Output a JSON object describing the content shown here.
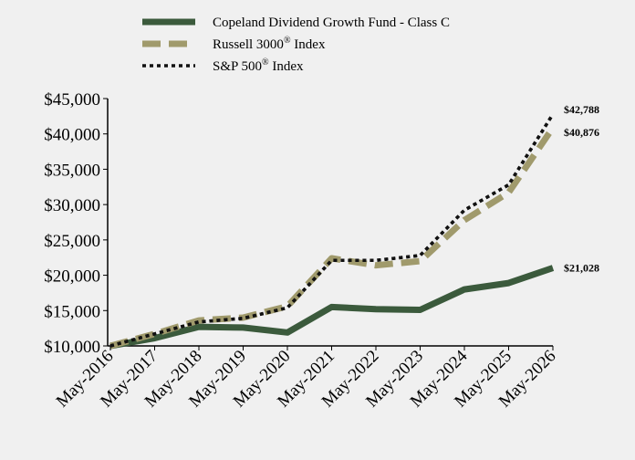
{
  "chart_data": {
    "type": "line",
    "categories": [
      "May-2016",
      "May-2017",
      "May-2018",
      "May-2019",
      "May-2020",
      "May-2021",
      "May-2022",
      "May-2023",
      "May-2024",
      "May-2025",
      "May-2026"
    ],
    "ylim": [
      10000,
      45000
    ],
    "y_ticks": [
      {
        "value": 10000,
        "label": "$10,000"
      },
      {
        "value": 15000,
        "label": "$15,000"
      },
      {
        "value": 20000,
        "label": "$20,000"
      },
      {
        "value": 25000,
        "label": "$25,000"
      },
      {
        "value": 30000,
        "label": "$30,000"
      },
      {
        "value": 35000,
        "label": "$35,000"
      },
      {
        "value": 40000,
        "label": "$40,000"
      },
      {
        "value": 45000,
        "label": "$45,000"
      }
    ],
    "grid": false,
    "legend_position": "top",
    "series": [
      {
        "name": "Copeland Dividend Growth Fund - Class C",
        "name_suffix": "",
        "color": "#3b5a3c",
        "style": "solid",
        "values": [
          10000,
          11100,
          12700,
          12600,
          11900,
          15500,
          15200,
          15100,
          18000,
          18900,
          21028
        ],
        "end_label": "$21,028"
      },
      {
        "name": "Russell 3000",
        "name_suffix": " Index",
        "color": "#a09a6c",
        "style": "dashed",
        "values": [
          10000,
          11700,
          13600,
          14000,
          15600,
          22400,
          21400,
          22000,
          27800,
          31700,
          40876
        ],
        "end_label": "$40,876"
      },
      {
        "name": "S&P 500",
        "name_suffix": " Index",
        "color": "#111111",
        "style": "dotted",
        "values": [
          10000,
          11700,
          13400,
          13900,
          15400,
          22100,
          22100,
          22800,
          29200,
          32800,
          42788
        ],
        "end_label": "$42,788"
      }
    ],
    "registered_mark": "®"
  }
}
